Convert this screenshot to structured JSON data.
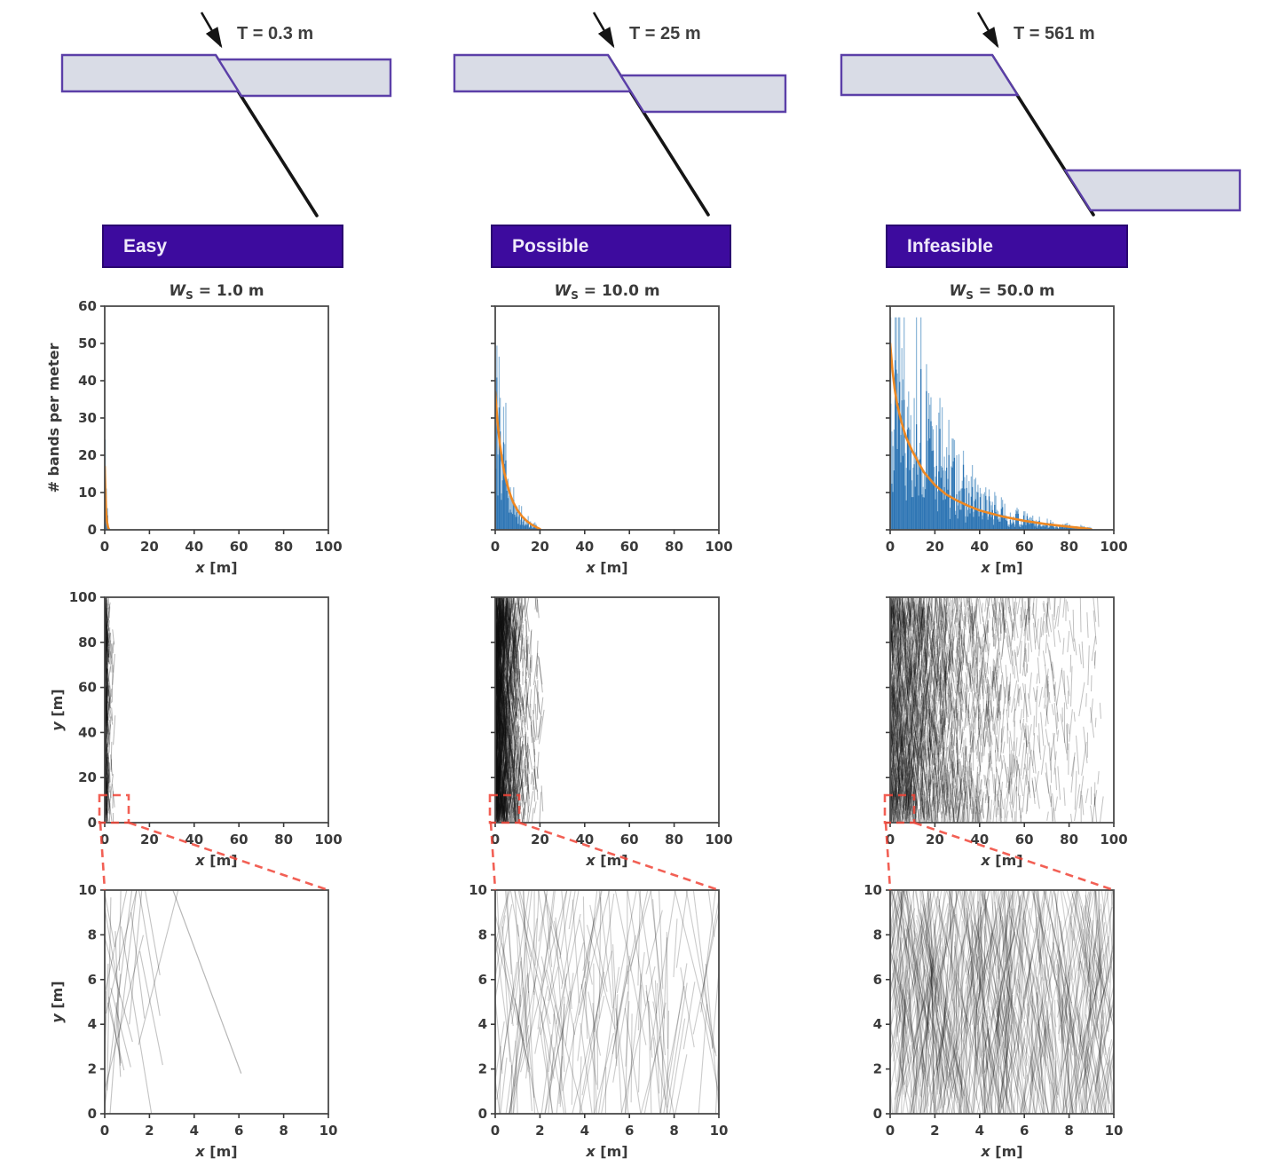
{
  "colors": {
    "banner_bg": "#3d0b9e",
    "banner_border": "#2a0671",
    "banner_text": "#efe9fa",
    "layer_fill": "#d9dce6",
    "layer_border": "#5b3fa8",
    "fault_line": "#151515",
    "hist_bar": "#2e75b4",
    "hist_bar_light": "#8fb8d9",
    "decay_curve": "#ee8822",
    "zoom_box": "#f04437",
    "axis_frame": "#4a4a4a",
    "trace_lines": "#111111",
    "plot_text": "#3a3a3a"
  },
  "schematics": [
    {
      "scenario": "easy",
      "throw_label": "T = 0.3 m"
    },
    {
      "scenario": "possible",
      "throw_label": "T = 25 m"
    },
    {
      "scenario": "infeasible",
      "throw_label": "T = 561 m"
    }
  ],
  "banners": [
    {
      "label": "Easy"
    },
    {
      "label": "Possible"
    },
    {
      "label": "Infeasible"
    }
  ],
  "chart_data": [
    {
      "id": "hist-easy",
      "type": "bar",
      "row": "hist",
      "col": 0,
      "title": {
        "var": "W",
        "sub": "S",
        "rest": " = 1.0 m"
      },
      "xlabel": {
        "var": "x",
        "rest": " [m]"
      },
      "ylabel": "# bands per meter",
      "xlim": [
        0,
        100
      ],
      "ylim": [
        0,
        60
      ],
      "xticks": [
        0,
        20,
        40,
        60,
        80,
        100
      ],
      "yticks": [
        0,
        10,
        20,
        30,
        40,
        50,
        60
      ],
      "show_ytick_labels": true,
      "bar_color": "#2e75b4",
      "bar_color_light": "#8fb8d9",
      "bars": {
        "peak": 17,
        "tau": 0.55,
        "extent": 2,
        "bin_width": 0.5,
        "seed": 11
      },
      "curve": {
        "color": "#ee8822",
        "points": [
          [
            0,
            17
          ],
          [
            0.3,
            10
          ],
          [
            0.6,
            5.2
          ],
          [
            1,
            2.2
          ],
          [
            1.5,
            0.6
          ],
          [
            2,
            0
          ]
        ]
      }
    },
    {
      "id": "hist-possible",
      "type": "bar",
      "row": "hist",
      "col": 1,
      "title": {
        "var": "W",
        "sub": "S",
        "rest": " = 10.0 m"
      },
      "xlabel": {
        "var": "x",
        "rest": " [m]"
      },
      "xlim": [
        0,
        100
      ],
      "ylim": [
        0,
        60
      ],
      "xticks": [
        0,
        20,
        40,
        60,
        80,
        100
      ],
      "yticks": [
        0,
        10,
        20,
        30,
        40,
        50,
        60
      ],
      "show_ytick_labels": false,
      "bar_color": "#2e75b4",
      "bar_color_light": "#8fb8d9",
      "bars": {
        "peak": 35,
        "tau": 5,
        "extent": 20,
        "bin_width": 0.5,
        "seed": 12
      },
      "curve": {
        "color": "#ee8822",
        "points": [
          [
            0,
            37
          ],
          [
            1,
            29
          ],
          [
            2,
            23.5
          ],
          [
            3,
            19
          ],
          [
            4,
            15.5
          ],
          [
            5,
            13
          ],
          [
            6,
            10.8
          ],
          [
            7,
            9
          ],
          [
            8,
            7.4
          ],
          [
            10,
            5.2
          ],
          [
            12,
            3.6
          ],
          [
            14,
            2.4
          ],
          [
            16,
            1.5
          ],
          [
            18,
            0.8
          ],
          [
            20,
            0.2
          ]
        ]
      }
    },
    {
      "id": "hist-infeasible",
      "type": "bar",
      "row": "hist",
      "col": 2,
      "title": {
        "var": "W",
        "sub": "S",
        "rest": " = 50.0 m"
      },
      "xlabel": {
        "var": "x",
        "rest": " [m]"
      },
      "xlim": [
        0,
        100
      ],
      "ylim": [
        0,
        60
      ],
      "xticks": [
        0,
        20,
        40,
        60,
        80,
        100
      ],
      "yticks": [
        0,
        10,
        20,
        30,
        40,
        50,
        60
      ],
      "show_ytick_labels": false,
      "bar_color": "#2e75b4",
      "bar_color_light": "#8fb8d9",
      "bars": {
        "peak": 50,
        "tau": 19,
        "extent": 90,
        "bin_width": 0.5,
        "seed": 13
      },
      "curve": {
        "color": "#ee8822",
        "points": [
          [
            0,
            50
          ],
          [
            1,
            43
          ],
          [
            2,
            38
          ],
          [
            3,
            34
          ],
          [
            5,
            29
          ],
          [
            7,
            25
          ],
          [
            10,
            21
          ],
          [
            15,
            15.5
          ],
          [
            20,
            12
          ],
          [
            25,
            9.5
          ],
          [
            30,
            7.8
          ],
          [
            35,
            6.4
          ],
          [
            40,
            5.2
          ],
          [
            50,
            3.6
          ],
          [
            60,
            2.4
          ],
          [
            70,
            1.5
          ],
          [
            80,
            0.8
          ],
          [
            88,
            0.3
          ],
          [
            90,
            0.1
          ]
        ]
      }
    },
    {
      "id": "map-easy",
      "type": "line",
      "row": "map",
      "col": 0,
      "xlabel": {
        "var": "x",
        "rest": " [m]"
      },
      "ylabel": {
        "var": "y",
        "rest": " [m]"
      },
      "xlim": [
        0,
        100
      ],
      "ylim": [
        0,
        100
      ],
      "xticks": [
        0,
        20,
        40,
        60,
        80,
        100
      ],
      "yticks": [
        0,
        20,
        40,
        60,
        80,
        100
      ],
      "show_ytick_labels": true,
      "lines": {
        "n": 320,
        "tau": 0.9,
        "extent": 8,
        "seed": 21,
        "len_min": 4,
        "len_max": 18,
        "tilt": 0.35,
        "opacity": 0.3,
        "lw": 1
      },
      "zoom_box": {
        "x": [
          0,
          10
        ],
        "y": [
          0,
          12
        ]
      }
    },
    {
      "id": "map-possible",
      "type": "line",
      "row": "map",
      "col": 1,
      "xlabel": {
        "var": "x",
        "rest": " [m]"
      },
      "xlim": [
        0,
        100
      ],
      "ylim": [
        0,
        100
      ],
      "xticks": [
        0,
        20,
        40,
        60,
        80,
        100
      ],
      "yticks": [
        0,
        20,
        40,
        60,
        80,
        100
      ],
      "show_ytick_labels": false,
      "lines": {
        "n": 1900,
        "tau": 4.5,
        "extent": 22,
        "seed": 22,
        "len_min": 4,
        "len_max": 18,
        "tilt": 0.35,
        "opacity": 0.3,
        "lw": 1
      },
      "zoom_box": {
        "x": [
          0,
          10
        ],
        "y": [
          0,
          12
        ]
      }
    },
    {
      "id": "map-infeasible",
      "type": "line",
      "row": "map",
      "col": 2,
      "xlabel": {
        "var": "x",
        "rest": " [m]"
      },
      "xlim": [
        0,
        100
      ],
      "ylim": [
        0,
        100
      ],
      "xticks": [
        0,
        20,
        40,
        60,
        80,
        100
      ],
      "yticks": [
        0,
        20,
        40,
        60,
        80,
        100
      ],
      "show_ytick_labels": false,
      "lines": {
        "n": 2600,
        "tau": 24,
        "extent": 95,
        "seed": 23,
        "len_min": 4,
        "len_max": 18,
        "tilt": 0.35,
        "opacity": 0.26,
        "lw": 1
      },
      "zoom_box": {
        "x": [
          0,
          10
        ],
        "y": [
          0,
          12
        ]
      }
    },
    {
      "id": "inset-easy",
      "type": "line",
      "row": "inset",
      "col": 0,
      "xlabel": {
        "var": "x",
        "rest": " [m]"
      },
      "ylabel": {
        "var": "y",
        "rest": " [m]"
      },
      "xlim": [
        0,
        10
      ],
      "ylim": [
        0,
        10
      ],
      "xticks": [
        0,
        2,
        4,
        6,
        8,
        10
      ],
      "yticks": [
        0,
        2,
        4,
        6,
        8,
        10
      ],
      "show_ytick_labels": true,
      "lines": {
        "n": 26,
        "tau": 1.0,
        "extent": 3,
        "seed": 31,
        "len_min": 2.5,
        "len_max": 9.5,
        "tilt": 0.55,
        "opacity": 0.25,
        "lw": 1.1,
        "feature_line": [
          [
            3.05,
            10
          ],
          [
            6.1,
            1.8
          ]
        ]
      }
    },
    {
      "id": "inset-possible",
      "type": "line",
      "row": "inset",
      "col": 1,
      "xlabel": {
        "var": "x",
        "rest": " [m]"
      },
      "xlim": [
        0,
        10
      ],
      "ylim": [
        0,
        10
      ],
      "xticks": [
        0,
        2,
        4,
        6,
        8,
        10
      ],
      "yticks": [
        0,
        2,
        4,
        6,
        8,
        10
      ],
      "show_ytick_labels": true,
      "lines": {
        "n": 175,
        "tau": 8,
        "extent": 10,
        "seed": 32,
        "len_min": 2.5,
        "len_max": 9.5,
        "tilt": 0.55,
        "opacity": 0.22,
        "lw": 1.1
      }
    },
    {
      "id": "inset-infeasible",
      "type": "line",
      "row": "inset",
      "col": 2,
      "xlabel": {
        "var": "x",
        "rest": " [m]"
      },
      "xlim": [
        0,
        10
      ],
      "ylim": [
        0,
        10
      ],
      "xticks": [
        0,
        2,
        4,
        6,
        8,
        10
      ],
      "yticks": [
        0,
        2,
        4,
        6,
        8,
        10
      ],
      "show_ytick_labels": true,
      "lines": {
        "n": 600,
        "tau": 18,
        "extent": 10,
        "seed": 33,
        "len_min": 2.5,
        "len_max": 9.5,
        "tilt": 0.55,
        "opacity": 0.2,
        "lw": 1.1
      }
    }
  ]
}
